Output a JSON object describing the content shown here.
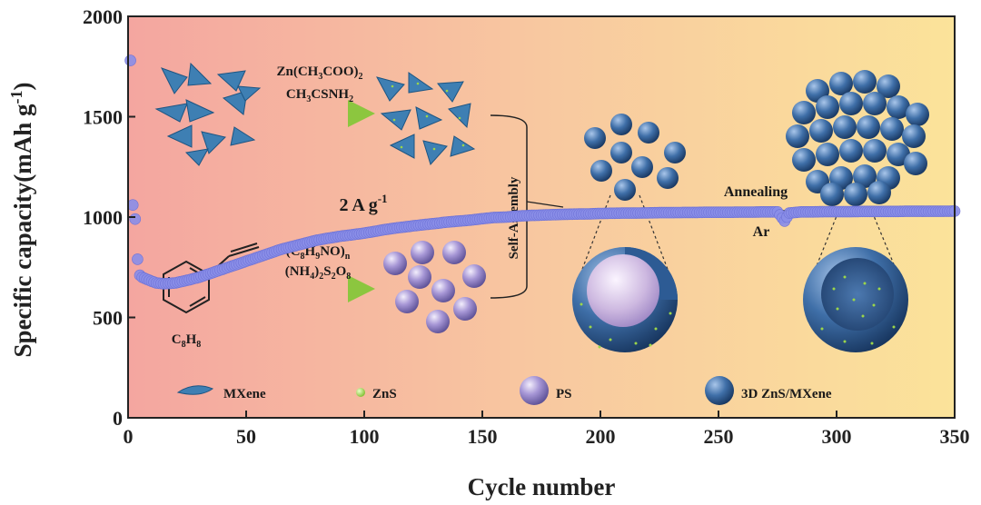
{
  "chart_data": {
    "type": "scatter",
    "xlabel": "Cycle number",
    "ylabel": "Specific capacity(mAh g",
    "ylabel_sup": "-1",
    "ylabel_close": ")",
    "xlim": [
      0,
      350
    ],
    "ylim": [
      0,
      2000
    ],
    "xticks": [
      "0",
      "50",
      "100",
      "150",
      "200",
      "250",
      "300",
      "350"
    ],
    "yticks": [
      "0",
      "500",
      "1000",
      "1500",
      "2000"
    ],
    "grid": false,
    "marker_color": "#8a8ee8",
    "background_gradient": [
      "#f4a6a0",
      "#f8c8a0",
      "#fbe39a"
    ],
    "annotation_rate": "2 A g",
    "annotation_rate_sup": "-1",
    "series": [
      {
        "x": [
          1,
          2,
          3,
          4,
          5,
          6,
          8,
          10,
          12,
          15,
          18,
          20,
          25,
          30,
          35,
          40,
          45,
          50,
          55,
          60,
          65,
          70,
          75,
          80,
          85,
          90,
          95,
          100,
          105,
          110,
          115,
          120,
          125,
          130,
          135,
          140,
          145,
          150,
          155,
          160,
          165,
          170,
          175,
          180,
          185,
          190,
          195,
          200,
          205,
          210,
          215,
          220,
          225,
          230,
          235,
          240,
          245,
          250,
          255,
          260,
          265,
          270,
          275,
          278,
          280,
          285,
          290,
          295,
          300,
          305,
          310,
          315,
          320,
          325,
          330,
          335,
          340,
          345,
          350
        ],
        "y": [
          1780,
          1060,
          990,
          790,
          710,
          700,
          690,
          680,
          672,
          668,
          670,
          672,
          685,
          700,
          720,
          740,
          760,
          780,
          800,
          820,
          840,
          855,
          870,
          885,
          895,
          905,
          912,
          920,
          930,
          940,
          948,
          955,
          962,
          968,
          975,
          980,
          985,
          992,
          998,
          1000,
          1005,
          1008,
          1010,
          1012,
          1014,
          1015,
          1016,
          1018,
          1019,
          1020,
          1020,
          1021,
          1022,
          1022,
          1023,
          1023,
          1024,
          1024,
          1024,
          1025,
          1025,
          1026,
          1026,
          980,
          1020,
          1026,
          1026,
          1027,
          1027,
          1027,
          1028,
          1028,
          1028,
          1028,
          1029,
          1029,
          1029,
          1029,
          1030
        ]
      }
    ]
  },
  "schematic": {
    "reagent_top_1": "Zn(CH",
    "reagent_top_1_sub": "3",
    "reagent_top_1_b": "COO)",
    "reagent_top_1_sub2": "2",
    "reagent_top_2": "CH",
    "reagent_top_2_sub": "3",
    "reagent_top_2_b": "CSNH",
    "reagent_top_2_sub2": "2",
    "reagent_bot_1": "(C",
    "reagent_bot_1_sub": "8",
    "reagent_bot_1_b": "H",
    "reagent_bot_1_sub2": "9",
    "reagent_bot_1_c": "NO)",
    "reagent_bot_1_sub3": "n",
    "reagent_bot_2": "(NH",
    "reagent_bot_2_sub": "4",
    "reagent_bot_2_b": ")",
    "reagent_bot_2_sub2": "2",
    "reagent_bot_2_c": "S",
    "reagent_bot_2_sub3": "2",
    "reagent_bot_2_d": "O",
    "reagent_bot_2_sub4": "8",
    "styrene_label": "C",
    "styrene_sub1": "8",
    "styrene_label_b": "H",
    "styrene_sub2": "8",
    "self_assembly": "Self-Assembly",
    "annealing": "Annealing",
    "atmosphere": "Ar"
  },
  "legend": [
    {
      "icon": "mxene-flake-icon",
      "label": "MXene"
    },
    {
      "icon": "zns-dot-icon",
      "label": "ZnS"
    },
    {
      "icon": "ps-sphere-icon",
      "label": "PS"
    },
    {
      "icon": "zns-mxene-sphere-icon",
      "label": "3D ZnS/MXene"
    }
  ]
}
